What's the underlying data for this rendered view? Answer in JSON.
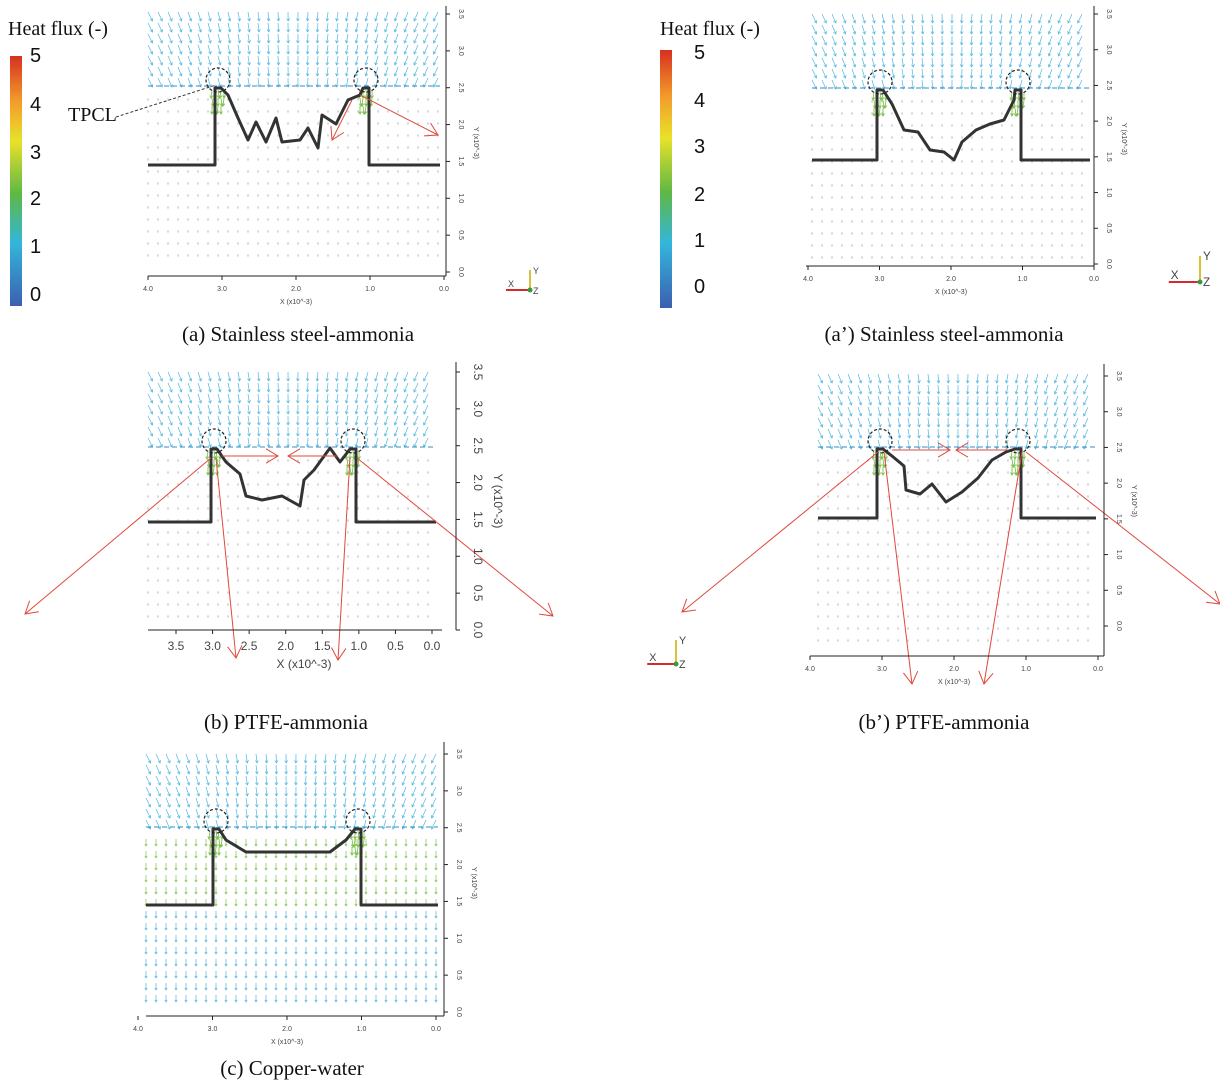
{
  "legend": {
    "title": "Heat flux (-)",
    "ticks": [
      "5",
      "4",
      "3",
      "2",
      "1",
      "0"
    ],
    "colors": [
      "#d7301f",
      "#f39b2a",
      "#e8e22a",
      "#5fb844",
      "#33b6dc",
      "#3b5fb0"
    ]
  },
  "annotation": {
    "tpcl": "TPCL"
  },
  "axis": {
    "x_title": "X (x10^-3)",
    "y_title": "Y (x10^-3)",
    "x_ticks_int": [
      "4.0",
      "3.0",
      "2.0",
      "1.0",
      "0.0"
    ],
    "x_ticks_half": [
      "3.5",
      "3.0",
      "2.5",
      "2.0",
      "1.5",
      "1.0",
      "0.5",
      "0.0"
    ],
    "y_ticks": [
      "3.5",
      "3.0",
      "2.5",
      "2.0",
      "1.5",
      "1.0",
      "0.5",
      "0.0"
    ],
    "triad": {
      "x": "X",
      "y": "Y",
      "z": "Z"
    }
  },
  "panels": [
    {
      "id": "a",
      "caption": "(a) Stainless steel-ammonia"
    },
    {
      "id": "a_prime",
      "caption": "(a’) Stainless steel-ammonia"
    },
    {
      "id": "b",
      "caption": "(b) PTFE-ammonia"
    },
    {
      "id": "b_prime",
      "caption": "(b’) PTFE-ammonia"
    },
    {
      "id": "c",
      "caption": "(c) Copper-water"
    }
  ],
  "colors": {
    "vapor_arrows": "#4fb7e0",
    "interface_arrows": "#7cc24a",
    "hot_arrows": "#e0483c",
    "wall": "#333333"
  }
}
